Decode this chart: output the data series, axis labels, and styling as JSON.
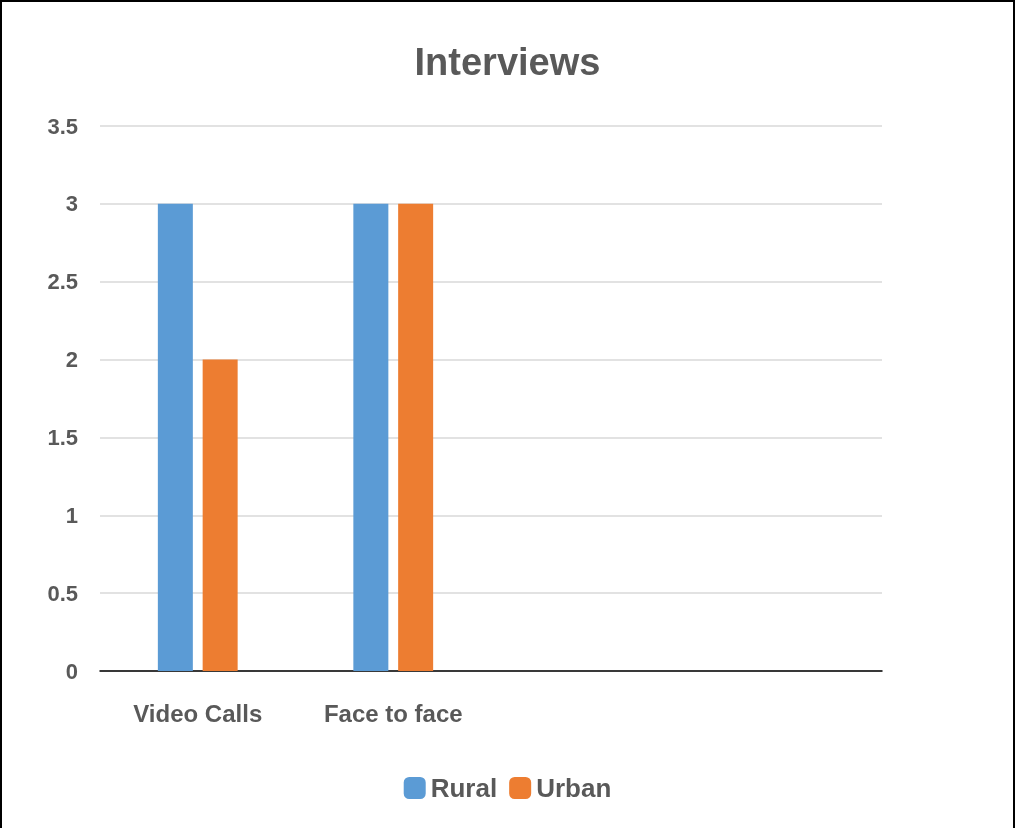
{
  "chart_data": {
    "type": "bar",
    "title": "Interviews",
    "categories": [
      "Video Calls",
      "Face to face",
      null,
      null
    ],
    "series": [
      {
        "name": "Rural",
        "color": "#5b9bd5",
        "values": [
          3,
          3,
          null,
          null
        ]
      },
      {
        "name": "Urban",
        "color": "#ed7d31",
        "values": [
          2,
          3,
          null,
          null
        ]
      }
    ],
    "ylim": [
      0,
      3.5
    ],
    "yticks": [
      0,
      0.5,
      1,
      1.5,
      2,
      2.5,
      3,
      3.5
    ],
    "grid": "y",
    "legend": "bottom"
  }
}
